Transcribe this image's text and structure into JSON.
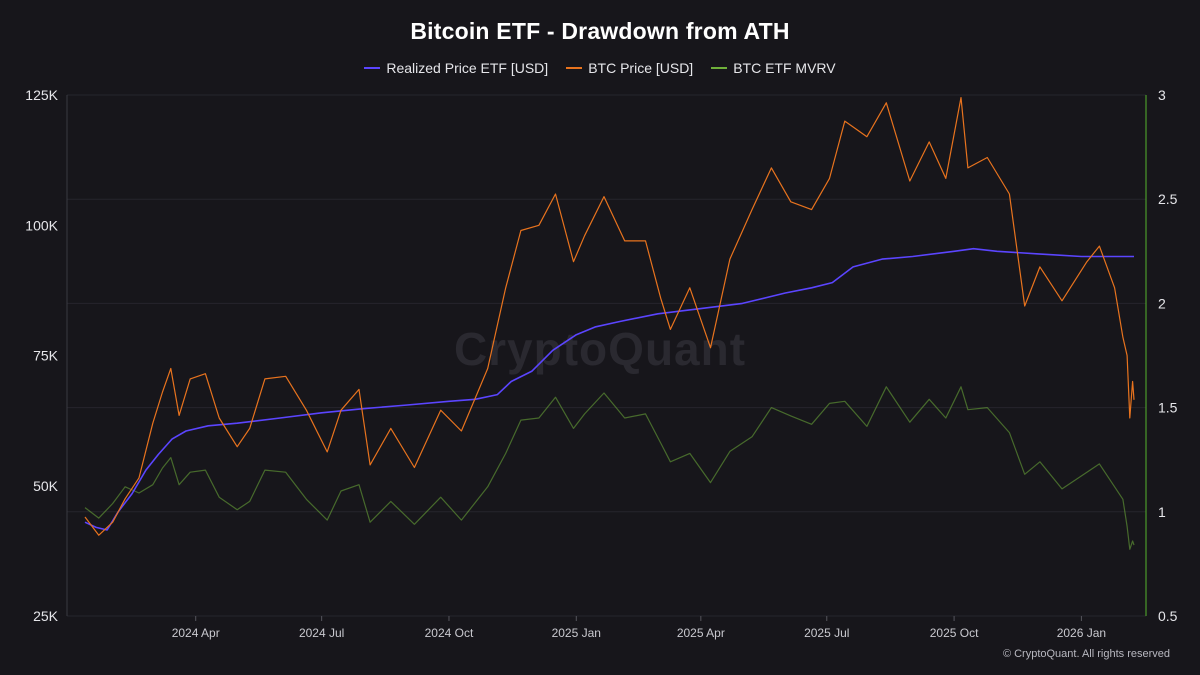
{
  "chart_data": {
    "type": "line",
    "title": "Bitcoin ETF - Drawdown from ATH",
    "watermark": "CryptoQuant",
    "footer": "© CryptoQuant. All rights reserved",
    "x_ticks": [
      "2024 Apr",
      "2024 Jul",
      "2024 Oct",
      "2025 Jan",
      "2025 Apr",
      "2025 Jul",
      "2025 Oct",
      "2026 Jan"
    ],
    "x_range": [
      "2024-01-12",
      "2026-02-08"
    ],
    "y_left": {
      "ticks": [
        "125K",
        "100K",
        "75K",
        "50K",
        "25K"
      ],
      "ylim": [
        25000,
        125000
      ]
    },
    "y_right": {
      "ticks": [
        "3",
        "2.5",
        "2",
        "1.5",
        "1",
        "0.5"
      ],
      "ylim": [
        0.5,
        3
      ]
    },
    "series": [
      {
        "name": "Realized Price ETF [USD]",
        "color": "#5b45ff",
        "axis": "left",
        "points": [
          [
            "2024-01-12",
            43000
          ],
          [
            "2024-01-20",
            42000
          ],
          [
            "2024-01-28",
            41500
          ],
          [
            "2024-02-05",
            45000
          ],
          [
            "2024-02-15",
            48500
          ],
          [
            "2024-02-25",
            53000
          ],
          [
            "2024-03-05",
            56000
          ],
          [
            "2024-03-15",
            59000
          ],
          [
            "2024-03-25",
            60500
          ],
          [
            "2024-04-10",
            61500
          ],
          [
            "2024-05-01",
            62000
          ],
          [
            "2024-06-01",
            63000
          ],
          [
            "2024-07-01",
            64000
          ],
          [
            "2024-08-01",
            64800
          ],
          [
            "2024-09-01",
            65500
          ],
          [
            "2024-10-01",
            66200
          ],
          [
            "2024-10-20",
            66600
          ],
          [
            "2024-11-05",
            67500
          ],
          [
            "2024-11-15",
            70000
          ],
          [
            "2024-11-30",
            72000
          ],
          [
            "2024-12-15",
            76000
          ],
          [
            "2025-01-01",
            79000
          ],
          [
            "2025-01-15",
            80500
          ],
          [
            "2025-02-01",
            81500
          ],
          [
            "2025-03-01",
            83000
          ],
          [
            "2025-04-01",
            84000
          ],
          [
            "2025-05-01",
            85000
          ],
          [
            "2025-06-01",
            87000
          ],
          [
            "2025-06-20",
            88000
          ],
          [
            "2025-07-05",
            89000
          ],
          [
            "2025-07-20",
            92000
          ],
          [
            "2025-08-10",
            93500
          ],
          [
            "2025-09-01",
            94000
          ],
          [
            "2025-10-01",
            95000
          ],
          [
            "2025-10-15",
            95500
          ],
          [
            "2025-11-01",
            95000
          ],
          [
            "2025-12-01",
            94500
          ],
          [
            "2026-01-01",
            94000
          ],
          [
            "2026-01-20",
            94000
          ],
          [
            "2026-02-08",
            94000
          ]
        ]
      },
      {
        "name": "BTC Price [USD]",
        "color": "#e8731e",
        "axis": "left",
        "points": [
          [
            "2024-01-12",
            44000
          ],
          [
            "2024-01-22",
            40500
          ],
          [
            "2024-02-01",
            43000
          ],
          [
            "2024-02-10",
            47500
          ],
          [
            "2024-02-20",
            51500
          ],
          [
            "2024-03-01",
            62000
          ],
          [
            "2024-03-08",
            68000
          ],
          [
            "2024-03-14",
            72500
          ],
          [
            "2024-03-20",
            63500
          ],
          [
            "2024-03-28",
            70500
          ],
          [
            "2024-04-08",
            71500
          ],
          [
            "2024-04-18",
            63000
          ],
          [
            "2024-05-01",
            57500
          ],
          [
            "2024-05-10",
            61000
          ],
          [
            "2024-05-21",
            70500
          ],
          [
            "2024-06-05",
            71000
          ],
          [
            "2024-06-20",
            64500
          ],
          [
            "2024-07-05",
            56500
          ],
          [
            "2024-07-15",
            64500
          ],
          [
            "2024-07-28",
            68500
          ],
          [
            "2024-08-05",
            54000
          ],
          [
            "2024-08-20",
            61000
          ],
          [
            "2024-09-06",
            53500
          ],
          [
            "2024-09-25",
            64500
          ],
          [
            "2024-10-10",
            60500
          ],
          [
            "2024-10-29",
            72500
          ],
          [
            "2024-11-11",
            88000
          ],
          [
            "2024-11-22",
            99000
          ],
          [
            "2024-12-05",
            100000
          ],
          [
            "2024-12-17",
            106000
          ],
          [
            "2024-12-30",
            93000
          ],
          [
            "2025-01-07",
            98000
          ],
          [
            "2025-01-21",
            105500
          ],
          [
            "2025-02-05",
            97000
          ],
          [
            "2025-02-20",
            97000
          ],
          [
            "2025-03-03",
            86000
          ],
          [
            "2025-03-10",
            80000
          ],
          [
            "2025-03-24",
            88000
          ],
          [
            "2025-04-08",
            76500
          ],
          [
            "2025-04-22",
            93500
          ],
          [
            "2025-05-08",
            103000
          ],
          [
            "2025-05-22",
            111000
          ],
          [
            "2025-06-05",
            104500
          ],
          [
            "2025-06-20",
            103000
          ],
          [
            "2025-07-03",
            109000
          ],
          [
            "2025-07-14",
            120000
          ],
          [
            "2025-07-30",
            117000
          ],
          [
            "2025-08-13",
            123500
          ],
          [
            "2025-08-30",
            108500
          ],
          [
            "2025-09-13",
            116000
          ],
          [
            "2025-09-25",
            109000
          ],
          [
            "2025-10-06",
            124500
          ],
          [
            "2025-10-11",
            111000
          ],
          [
            "2025-10-25",
            113000
          ],
          [
            "2025-11-10",
            106000
          ],
          [
            "2025-11-21",
            84500
          ],
          [
            "2025-12-02",
            92000
          ],
          [
            "2025-12-18",
            85500
          ],
          [
            "2026-01-05",
            93000
          ],
          [
            "2026-01-14",
            96000
          ],
          [
            "2026-01-25",
            88000
          ],
          [
            "2026-01-31",
            78500
          ],
          [
            "2026-02-03",
            75000
          ],
          [
            "2026-02-05",
            63000
          ],
          [
            "2026-02-07",
            70000
          ],
          [
            "2026-02-08",
            66500
          ]
        ]
      },
      {
        "name": "BTC ETF MVRV",
        "color": "#6fb03a",
        "axis": "right",
        "points": [
          [
            "2024-01-12",
            1.02
          ],
          [
            "2024-01-22",
            0.97
          ],
          [
            "2024-02-01",
            1.04
          ],
          [
            "2024-02-10",
            1.12
          ],
          [
            "2024-02-20",
            1.09
          ],
          [
            "2024-03-01",
            1.13
          ],
          [
            "2024-03-08",
            1.21
          ],
          [
            "2024-03-14",
            1.26
          ],
          [
            "2024-03-20",
            1.13
          ],
          [
            "2024-03-28",
            1.19
          ],
          [
            "2024-04-08",
            1.2
          ],
          [
            "2024-04-18",
            1.07
          ],
          [
            "2024-05-01",
            1.01
          ],
          [
            "2024-05-10",
            1.05
          ],
          [
            "2024-05-21",
            1.2
          ],
          [
            "2024-06-05",
            1.19
          ],
          [
            "2024-06-20",
            1.06
          ],
          [
            "2024-07-05",
            0.96
          ],
          [
            "2024-07-15",
            1.1
          ],
          [
            "2024-07-28",
            1.13
          ],
          [
            "2024-08-05",
            0.95
          ],
          [
            "2024-08-20",
            1.05
          ],
          [
            "2024-09-06",
            0.94
          ],
          [
            "2024-09-25",
            1.07
          ],
          [
            "2024-10-10",
            0.96
          ],
          [
            "2024-10-29",
            1.12
          ],
          [
            "2024-11-11",
            1.28
          ],
          [
            "2024-11-22",
            1.44
          ],
          [
            "2024-12-05",
            1.45
          ],
          [
            "2024-12-17",
            1.55
          ],
          [
            "2024-12-30",
            1.4
          ],
          [
            "2025-01-07",
            1.47
          ],
          [
            "2025-01-21",
            1.57
          ],
          [
            "2025-02-05",
            1.45
          ],
          [
            "2025-02-20",
            1.47
          ],
          [
            "2025-03-03",
            1.33
          ],
          [
            "2025-03-10",
            1.24
          ],
          [
            "2025-03-24",
            1.28
          ],
          [
            "2025-04-08",
            1.14
          ],
          [
            "2025-04-22",
            1.29
          ],
          [
            "2025-05-08",
            1.36
          ],
          [
            "2025-05-22",
            1.5
          ],
          [
            "2025-06-05",
            1.46
          ],
          [
            "2025-06-20",
            1.42
          ],
          [
            "2025-07-03",
            1.52
          ],
          [
            "2025-07-14",
            1.53
          ],
          [
            "2025-07-30",
            1.41
          ],
          [
            "2025-08-13",
            1.6
          ],
          [
            "2025-08-30",
            1.43
          ],
          [
            "2025-09-13",
            1.54
          ],
          [
            "2025-09-25",
            1.45
          ],
          [
            "2025-10-06",
            1.6
          ],
          [
            "2025-10-11",
            1.49
          ],
          [
            "2025-10-25",
            1.5
          ],
          [
            "2025-11-10",
            1.38
          ],
          [
            "2025-11-21",
            1.18
          ],
          [
            "2025-12-02",
            1.24
          ],
          [
            "2025-12-18",
            1.11
          ],
          [
            "2026-01-05",
            1.19
          ],
          [
            "2026-01-14",
            1.23
          ],
          [
            "2026-01-25",
            1.12
          ],
          [
            "2026-01-31",
            1.06
          ],
          [
            "2026-02-03",
            0.93
          ],
          [
            "2026-02-05",
            0.82
          ],
          [
            "2026-02-07",
            0.86
          ],
          [
            "2026-02-08",
            0.84
          ]
        ]
      }
    ]
  }
}
